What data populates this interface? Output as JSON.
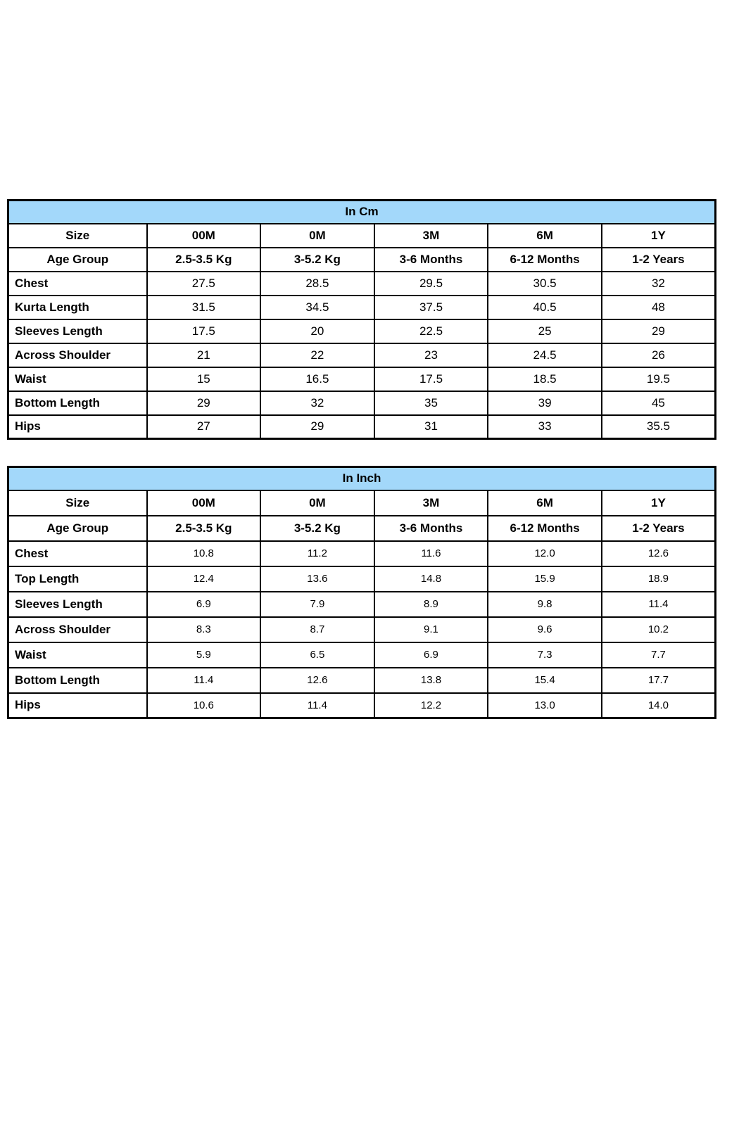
{
  "accent_color": "#a3d8fa",
  "tables": [
    {
      "title": "In Cm",
      "columns": [
        "Size",
        "00M",
        "0M",
        "3M",
        "6M",
        "1Y"
      ],
      "age_row": [
        "Age Group",
        "2.5-3.5 Kg",
        "3-5.2 Kg",
        "3-6 Months",
        "6-12 Months",
        "1-2 Years"
      ],
      "rows": [
        {
          "label": "Chest",
          "values": [
            "27.5",
            "28.5",
            "29.5",
            "30.5",
            "32"
          ]
        },
        {
          "label": "Kurta Length",
          "values": [
            "31.5",
            "34.5",
            "37.5",
            "40.5",
            "48"
          ]
        },
        {
          "label": "Sleeves Length",
          "values": [
            "17.5",
            "20",
            "22.5",
            "25",
            "29"
          ]
        },
        {
          "label": "Across Shoulder",
          "values": [
            "21",
            "22",
            "23",
            "24.5",
            "26"
          ]
        },
        {
          "label": "Waist",
          "values": [
            "15",
            "16.5",
            "17.5",
            "18.5",
            "19.5"
          ]
        },
        {
          "label": "Bottom Length",
          "values": [
            "29",
            "32",
            "35",
            "39",
            "45"
          ]
        },
        {
          "label": "Hips",
          "values": [
            "27",
            "29",
            "31",
            "33",
            "35.5"
          ]
        }
      ]
    },
    {
      "title": "In Inch",
      "columns": [
        "Size",
        "00M",
        "0M",
        "3M",
        "6M",
        "1Y"
      ],
      "age_row": [
        "Age Group",
        "2.5-3.5 Kg",
        "3-5.2 Kg",
        "3-6 Months",
        "6-12 Months",
        "1-2 Years"
      ],
      "rows": [
        {
          "label": "Chest",
          "values": [
            "10.8",
            "11.2",
            "11.6",
            "12.0",
            "12.6"
          ]
        },
        {
          "label": "Top Length",
          "values": [
            "12.4",
            "13.6",
            "14.8",
            "15.9",
            "18.9"
          ]
        },
        {
          "label": "Sleeves Length",
          "values": [
            "6.9",
            "7.9",
            "8.9",
            "9.8",
            "11.4"
          ]
        },
        {
          "label": "Across Shoulder",
          "values": [
            "8.3",
            "8.7",
            "9.1",
            "9.6",
            "10.2"
          ]
        },
        {
          "label": "Waist",
          "values": [
            "5.9",
            "6.5",
            "6.9",
            "7.3",
            "7.7"
          ]
        },
        {
          "label": "Bottom Length",
          "values": [
            "11.4",
            "12.6",
            "13.8",
            "15.4",
            "17.7"
          ]
        },
        {
          "label": "Hips",
          "values": [
            "10.6",
            "11.4",
            "12.2",
            "13.0",
            "14.0"
          ]
        }
      ]
    }
  ],
  "chart_data": [
    {
      "type": "table",
      "title": "In Cm",
      "columns": [
        "Size",
        "00M",
        "0M",
        "3M",
        "6M",
        "1Y"
      ],
      "rows": [
        [
          "Age Group",
          "2.5-3.5 Kg",
          "3-5.2 Kg",
          "3-6 Months",
          "6-12 Months",
          "1-2 Years"
        ],
        [
          "Chest",
          27.5,
          28.5,
          29.5,
          30.5,
          32
        ],
        [
          "Kurta Length",
          31.5,
          34.5,
          37.5,
          40.5,
          48
        ],
        [
          "Sleeves Length",
          17.5,
          20,
          22.5,
          25,
          29
        ],
        [
          "Across Shoulder",
          21,
          22,
          23,
          24.5,
          26
        ],
        [
          "Waist",
          15,
          16.5,
          17.5,
          18.5,
          19.5
        ],
        [
          "Bottom Length",
          29,
          32,
          35,
          39,
          45
        ],
        [
          "Hips",
          27,
          29,
          31,
          33,
          35.5
        ]
      ]
    },
    {
      "type": "table",
      "title": "In Inch",
      "columns": [
        "Size",
        "00M",
        "0M",
        "3M",
        "6M",
        "1Y"
      ],
      "rows": [
        [
          "Age Group",
          "2.5-3.5 Kg",
          "3-5.2 Kg",
          "3-6 Months",
          "6-12 Months",
          "1-2 Years"
        ],
        [
          "Chest",
          10.8,
          11.2,
          11.6,
          12.0,
          12.6
        ],
        [
          "Top Length",
          12.4,
          13.6,
          14.8,
          15.9,
          18.9
        ],
        [
          "Sleeves Length",
          6.9,
          7.9,
          8.9,
          9.8,
          11.4
        ],
        [
          "Across Shoulder",
          8.3,
          8.7,
          9.1,
          9.6,
          10.2
        ],
        [
          "Waist",
          5.9,
          6.5,
          6.9,
          7.3,
          7.7
        ],
        [
          "Bottom Length",
          11.4,
          12.6,
          13.8,
          15.4,
          17.7
        ],
        [
          "Hips",
          10.6,
          11.4,
          12.2,
          13.0,
          14.0
        ]
      ]
    }
  ]
}
